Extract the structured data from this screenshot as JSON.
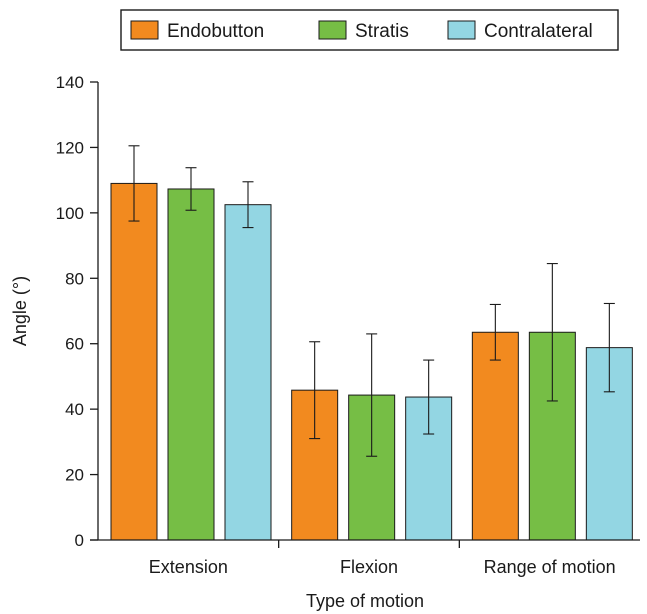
{
  "chart_data": {
    "type": "bar",
    "categories": [
      "Extension",
      "Flexion",
      "Range of motion"
    ],
    "series": [
      {
        "name": "Endobutton",
        "values": [
          109,
          45.8,
          63.5
        ],
        "errors": [
          11.5,
          14.8,
          8.5
        ],
        "color": "#f28a1f"
      },
      {
        "name": "Stratis",
        "values": [
          107.3,
          44.3,
          63.5
        ],
        "errors": [
          6.5,
          18.7,
          21
        ],
        "color": "#76be45"
      },
      {
        "name": "Contralateral",
        "values": [
          102.5,
          43.7,
          58.8
        ],
        "errors": [
          7,
          11.3,
          13.5
        ],
        "color": "#93d6e3"
      }
    ],
    "xlabel": "Type of motion",
    "ylabel": "Angle (°)",
    "ylim": [
      0,
      140
    ],
    "yticks": [
      0,
      20,
      40,
      60,
      80,
      100,
      120,
      140
    ],
    "legend_position": "top",
    "grid": false
  }
}
